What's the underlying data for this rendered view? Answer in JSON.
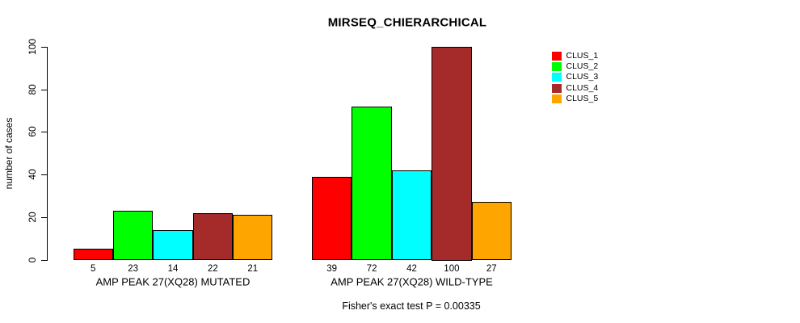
{
  "chart_data": {
    "type": "bar",
    "title": "MIRSEQ_CHIERARCHICAL",
    "ylabel": "number of cases",
    "ylim": [
      0,
      100
    ],
    "yticks": [
      0,
      20,
      40,
      60,
      80,
      100
    ],
    "categories": [
      "AMP PEAK 27(XQ28) MUTATED",
      "AMP PEAK 27(XQ28) WILD-TYPE"
    ],
    "series": [
      {
        "name": "CLUS_1",
        "color": "#FF0000",
        "values": [
          5,
          39
        ]
      },
      {
        "name": "CLUS_2",
        "color": "#00FF00",
        "values": [
          23,
          72
        ]
      },
      {
        "name": "CLUS_3",
        "color": "#00FFFF",
        "values": [
          14,
          42
        ]
      },
      {
        "name": "CLUS_4",
        "color": "#A52A2A",
        "values": [
          22,
          100
        ]
      },
      {
        "name": "CLUS_5",
        "color": "#FFA500",
        "values": [
          21,
          27
        ]
      }
    ],
    "bar_value_labels": [
      [
        5,
        23,
        14,
        22,
        21
      ],
      [
        39,
        72,
        42,
        100,
        27
      ]
    ],
    "annotation": "Fisher's exact test P = 0.00335",
    "legend_position": "top-right",
    "grid": false,
    "axis_color": "#000000",
    "bar_border_color": "#000000",
    "background_color": "#FFFFFF"
  }
}
